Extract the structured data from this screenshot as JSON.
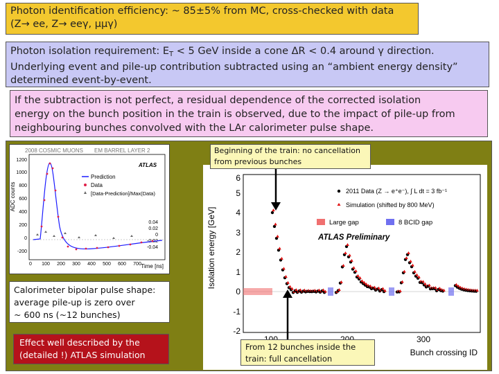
{
  "box1": {
    "line1": "Photon identification efficiency: ~ 85±5% from MC, cross-checked with data",
    "line2": "(Z→ ee, Z→ eeγ, μμγ)"
  },
  "box2": {
    "part_a": "Photon isolation requirement: E",
    "sub": "T",
    "part_b": " < 5 GeV inside a cone ΔR < 0.4 around γ direction.",
    "line2": "Underlying event and pile-up contribution subtracted using an “ambient energy density”",
    "line3": "determined event-by-event."
  },
  "box3": {
    "line1": "If the subtraction is not perfect, a residual dependence of the corrected isolation",
    "line2": "energy on the bunch position in the train is observed, due to the impact of  pile-up from",
    "line3": "neighbouring bunches convolved with the LAr calorimeter pulse shape."
  },
  "notes": {
    "top_line1": "Beginning of the train: no cancellation",
    "top_line2": "from previous bunches",
    "cal_line1": "Calorimeter bipolar pulse shape:",
    "cal_line2": "average pile-up is zero over",
    "cal_line3": "~ 600 ns (~12 bunches)",
    "sim_line1": "Effect well described by the",
    "sim_line2": "(detailed !) ATLAS simulation",
    "bot_line1": "From 12 bunches inside the",
    "bot_line2": "train: full cancellation"
  },
  "plot_pulse": {
    "title_left": "2008 COSMIC MUONS",
    "title_right": "EM BARREL LAYER 2",
    "atlas": "ATLAS",
    "ylabel": "ADC counts",
    "xlabel": "Time [ns]",
    "yticks": [
      "1200",
      "1000",
      "800",
      "600",
      "400",
      "200",
      "0",
      "-200"
    ],
    "xticks": [
      "0",
      "100",
      "200",
      "300",
      "400",
      "500",
      "600",
      "700",
      "800"
    ],
    "right_ticks": [
      "0.04",
      "0.02",
      "0",
      "-0.02",
      "-0.04"
    ],
    "legend": [
      "Prediction",
      "Data",
      "[Data-Prediction]/Max(Data)"
    ],
    "colors": {
      "prediction": "#1a1aff",
      "data": "#e0204a",
      "diff": "#666666"
    }
  },
  "plot_iso": {
    "ylabel": "Isolation energy [GeV]",
    "xlabel": "Bunch crossing ID",
    "yticks": [
      "-2",
      "-1",
      "0",
      "1",
      "2",
      "3",
      "4",
      "5",
      "6"
    ],
    "xticks": [
      "100",
      "200",
      "300"
    ],
    "legend_data": "2011 Data (Z → e⁺e⁻),  ∫ L dt = 3 fb⁻¹",
    "legend_sim": "Simulation (shifted by 800 MeV)",
    "legend_large_gap": "Large gap",
    "legend_bcid_gap": "8 BCID gap",
    "atlas": "ATLAS Preliminary",
    "colors": {
      "data": "#000000",
      "sim": "#e01010",
      "large_gap": "#f07070",
      "bcid_gap": "#7070f0"
    }
  }
}
